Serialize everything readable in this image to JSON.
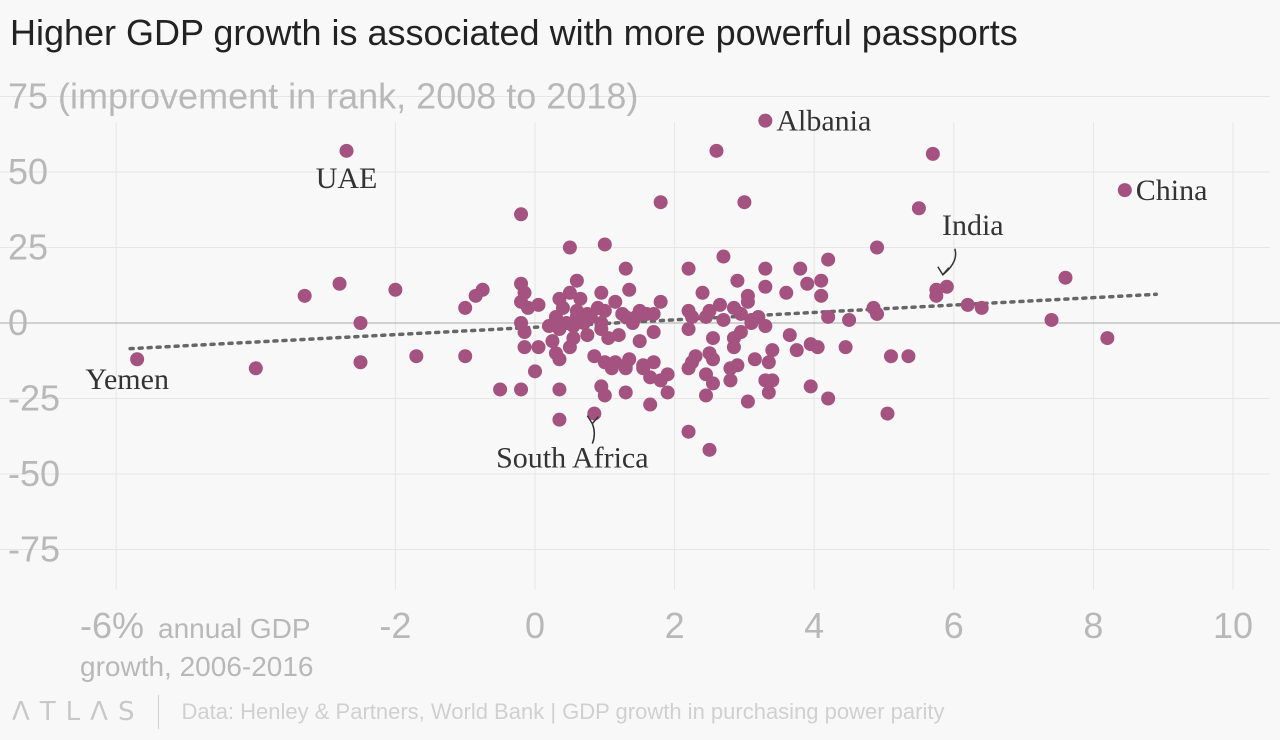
{
  "title": "Higher GDP growth is associated with more powerful passports",
  "footer": {
    "logo": "ΛTLΛS",
    "source": "Data: Henley & Partners, World Bank | GDP growth in purchasing power parity"
  },
  "chart_data": {
    "type": "scatter",
    "title": "Higher GDP growth is associated with more powerful passports",
    "ylabel": "(improvement in rank, 2008 to 2018)",
    "xlabel": "annual GDP growth, 2006-2016",
    "xlim": [
      -6.6,
      10.4
    ],
    "ylim": [
      -87,
      78
    ],
    "x_ticks": [
      -6,
      -2,
      0,
      2,
      4,
      6,
      8,
      10
    ],
    "x_tick_labels": [
      "-6%",
      "-2",
      "0",
      "2",
      "4",
      "6",
      "8",
      "10"
    ],
    "y_ticks": [
      75,
      50,
      25,
      0,
      -25,
      -50,
      -75
    ],
    "y_tick_labels": [
      "75",
      "50",
      "25",
      "0",
      "-25",
      "-50",
      "-75"
    ],
    "grid": true,
    "colors": {
      "points": "#a4527f",
      "trend": "#666666",
      "grid": "#e6e6e6",
      "zero": "#aaaaaa"
    },
    "trendline": {
      "style": "dotted",
      "x": [
        -5.8,
        8.9
      ],
      "y": [
        -8.5,
        9.5
      ]
    },
    "annotations": [
      {
        "label": "Albania",
        "x": 3.3,
        "y": 67
      },
      {
        "label": "UAE",
        "x": -2.7,
        "y": 57
      },
      {
        "label": "China",
        "x": 8.45,
        "y": 44
      },
      {
        "label": "India",
        "x": 5.9,
        "y": 12
      },
      {
        "label": "Yemen",
        "x": -5.7,
        "y": -12
      },
      {
        "label": "South Africa",
        "x": 0.85,
        "y": -30
      }
    ],
    "points": [
      [
        3.3,
        67
      ],
      [
        -2.7,
        57
      ],
      [
        2.6,
        57
      ],
      [
        5.7,
        56
      ],
      [
        8.45,
        44
      ],
      [
        3.0,
        40
      ],
      [
        1.8,
        40
      ],
      [
        5.5,
        38
      ],
      [
        -0.2,
        36
      ],
      [
        1.0,
        26
      ],
      [
        0.5,
        25
      ],
      [
        4.9,
        25
      ],
      [
        2.7,
        22
      ],
      [
        4.2,
        21
      ],
      [
        2.2,
        18
      ],
      [
        3.3,
        18
      ],
      [
        3.8,
        18
      ],
      [
        1.3,
        18
      ],
      [
        0.6,
        14
      ],
      [
        2.9,
        14
      ],
      [
        4.1,
        14
      ],
      [
        7.6,
        15
      ],
      [
        -2.8,
        13
      ],
      [
        -0.2,
        13
      ],
      [
        3.3,
        12
      ],
      [
        3.9,
        13
      ],
      [
        5.9,
        12
      ],
      [
        5.75,
        11
      ],
      [
        -2.0,
        11
      ],
      [
        -0.75,
        11
      ],
      [
        1.35,
        11
      ],
      [
        0.5,
        10
      ],
      [
        2.4,
        10
      ],
      [
        3.6,
        10
      ],
      [
        -0.15,
        10
      ],
      [
        0.95,
        10
      ],
      [
        -3.3,
        9
      ],
      [
        -0.85,
        9
      ],
      [
        5.75,
        9
      ],
      [
        3.05,
        9
      ],
      [
        4.1,
        9
      ],
      [
        0.65,
        8
      ],
      [
        0.35,
        8
      ],
      [
        -0.2,
        7
      ],
      [
        1.15,
        7
      ],
      [
        1.8,
        7
      ],
      [
        2.65,
        6
      ],
      [
        0.05,
        6
      ],
      [
        3.05,
        7
      ],
      [
        6.2,
        6
      ],
      [
        6.4,
        5
      ],
      [
        0.4,
        5
      ],
      [
        -0.1,
        5
      ],
      [
        0.9,
        5
      ],
      [
        -1.0,
        5
      ],
      [
        2.2,
        4
      ],
      [
        2.5,
        4
      ],
      [
        2.85,
        5
      ],
      [
        4.85,
        5
      ],
      [
        0.6,
        4
      ],
      [
        1.0,
        4
      ],
      [
        1.5,
        4
      ],
      [
        1.25,
        3
      ],
      [
        0.75,
        3
      ],
      [
        1.6,
        3
      ],
      [
        1.7,
        3
      ],
      [
        4.9,
        3
      ],
      [
        2.95,
        3
      ],
      [
        0.3,
        2
      ],
      [
        0.6,
        2
      ],
      [
        0.8,
        2
      ],
      [
        1.3,
        2
      ],
      [
        1.45,
        2
      ],
      [
        2.25,
        2
      ],
      [
        2.45,
        2
      ],
      [
        3.1,
        1
      ],
      [
        3.2,
        2
      ],
      [
        2.7,
        1
      ],
      [
        4.2,
        2
      ],
      [
        4.5,
        1
      ],
      [
        7.4,
        1
      ],
      [
        -2.5,
        0
      ],
      [
        0.45,
        0
      ],
      [
        0.7,
        0
      ],
      [
        0.95,
        0
      ],
      [
        1.4,
        0
      ],
      [
        -0.2,
        0
      ],
      [
        3.1,
        0
      ],
      [
        3.3,
        -1
      ],
      [
        0.55,
        -1
      ],
      [
        0.2,
        -1
      ],
      [
        1.7,
        -3
      ],
      [
        2.2,
        -2
      ],
      [
        0.95,
        -2
      ],
      [
        0.35,
        -2
      ],
      [
        -0.15,
        -3
      ],
      [
        2.95,
        -3
      ],
      [
        0.75,
        -4
      ],
      [
        1.2,
        -4
      ],
      [
        0.55,
        -5
      ],
      [
        1.05,
        -5
      ],
      [
        2.55,
        -5
      ],
      [
        3.65,
        -4
      ],
      [
        2.85,
        -5
      ],
      [
        8.2,
        -5
      ],
      [
        1.5,
        -6
      ],
      [
        0.25,
        -6
      ],
      [
        3.95,
        -7
      ],
      [
        4.45,
        -8
      ],
      [
        4.05,
        -8
      ],
      [
        0.5,
        -8
      ],
      [
        -0.15,
        -8
      ],
      [
        0.05,
        -8
      ],
      [
        3.75,
        -9
      ],
      [
        3.4,
        -9
      ],
      [
        2.85,
        -8
      ],
      [
        0.3,
        -10
      ],
      [
        2.5,
        -10
      ],
      [
        2.3,
        -11
      ],
      [
        5.1,
        -11
      ],
      [
        5.35,
        -11
      ],
      [
        -1.7,
        -11
      ],
      [
        -1.0,
        -11
      ],
      [
        0.85,
        -11
      ],
      [
        1.35,
        -12
      ],
      [
        2.55,
        -12
      ],
      [
        3.15,
        -12
      ],
      [
        0.35,
        -12
      ],
      [
        1.0,
        -13
      ],
      [
        1.15,
        -13
      ],
      [
        1.7,
        -13
      ],
      [
        2.25,
        -13
      ],
      [
        -2.5,
        -13
      ],
      [
        3.35,
        -13
      ],
      [
        1.3,
        -14
      ],
      [
        1.55,
        -14
      ],
      [
        2.9,
        -14
      ],
      [
        1.1,
        -15
      ],
      [
        1.3,
        -15
      ],
      [
        1.55,
        -15
      ],
      [
        -4.0,
        -15
      ],
      [
        2.2,
        -15
      ],
      [
        2.8,
        -15
      ],
      [
        0.0,
        -16
      ],
      [
        1.9,
        -17
      ],
      [
        2.45,
        -17
      ],
      [
        1.65,
        -18
      ],
      [
        2.8,
        -19
      ],
      [
        3.3,
        -19
      ],
      [
        3.4,
        -19
      ],
      [
        1.8,
        -19
      ],
      [
        2.55,
        -20
      ],
      [
        0.95,
        -21
      ],
      [
        3.95,
        -21
      ],
      [
        -0.5,
        -22
      ],
      [
        -0.2,
        -22
      ],
      [
        0.35,
        -22
      ],
      [
        1.3,
        -23
      ],
      [
        1.9,
        -23
      ],
      [
        3.35,
        -23
      ],
      [
        1.0,
        -24
      ],
      [
        2.45,
        -24
      ],
      [
        4.2,
        -25
      ],
      [
        3.05,
        -26
      ],
      [
        1.65,
        -27
      ],
      [
        5.05,
        -30
      ],
      [
        0.35,
        -32
      ],
      [
        2.2,
        -36
      ],
      [
        2.5,
        -42
      ],
      [
        -5.7,
        -12
      ],
      [
        0.85,
        -30
      ]
    ]
  }
}
